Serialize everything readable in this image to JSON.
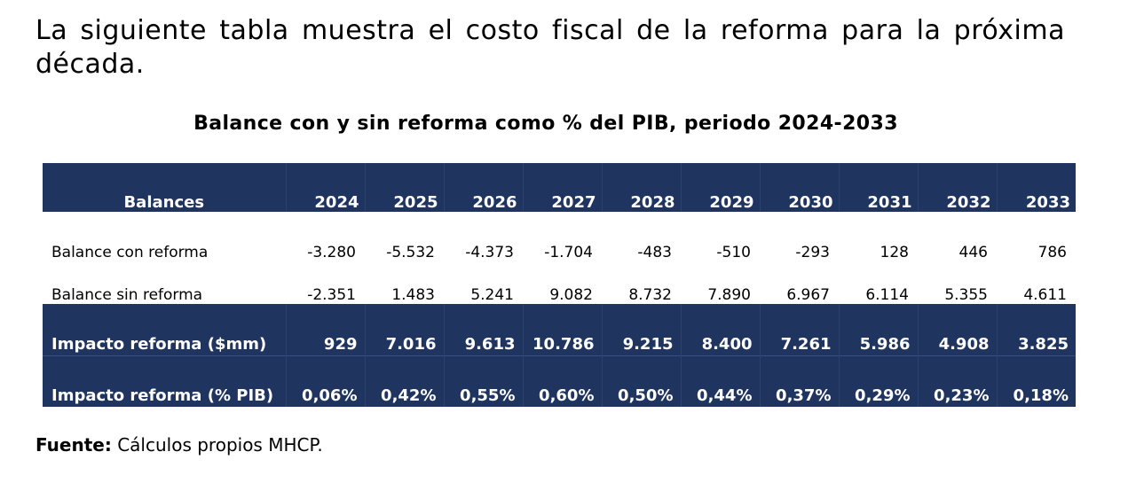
{
  "intro_text": "La siguiente tabla muestra el costo fiscal de la reforma para la próxima década.",
  "table": {
    "title": "Balance con y sin reforma como % del PIB, periodo 2024-2033",
    "header": {
      "label": "Balances",
      "years": [
        "2024",
        "2025",
        "2026",
        "2027",
        "2028",
        "2029",
        "2030",
        "2031",
        "2032",
        "2033"
      ]
    },
    "rows": [
      {
        "label": "Balance con reforma",
        "values": [
          "-3.280",
          "-5.532",
          "-4.373",
          "-1.704",
          "-483",
          "-510",
          "-293",
          "128",
          "446",
          "786"
        ]
      },
      {
        "label": "Balance sin reforma",
        "values": [
          "-2.351",
          "1.483",
          "5.241",
          "9.082",
          "8.732",
          "7.890",
          "6.967",
          "6.114",
          "5.355",
          "4.611"
        ]
      },
      {
        "label": "Impacto reforma ($mm)",
        "values": [
          "929",
          "7.016",
          "9.613",
          "10.786",
          "9.215",
          "8.400",
          "7.261",
          "5.986",
          "4.908",
          "3.825"
        ]
      },
      {
        "label": "Impacto reforma (% PIB)",
        "values": [
          "0,06%",
          "0,42%",
          "0,55%",
          "0,60%",
          "0,50%",
          "0,44%",
          "0,37%",
          "0,29%",
          "0,23%",
          "0,18%"
        ]
      }
    ]
  },
  "source": {
    "label": "Fuente:",
    "text": "Cálculos propios MHCP."
  },
  "colors": {
    "header_fill": "#1f3560",
    "header_text": "#ffffff",
    "body_text": "#000000"
  }
}
